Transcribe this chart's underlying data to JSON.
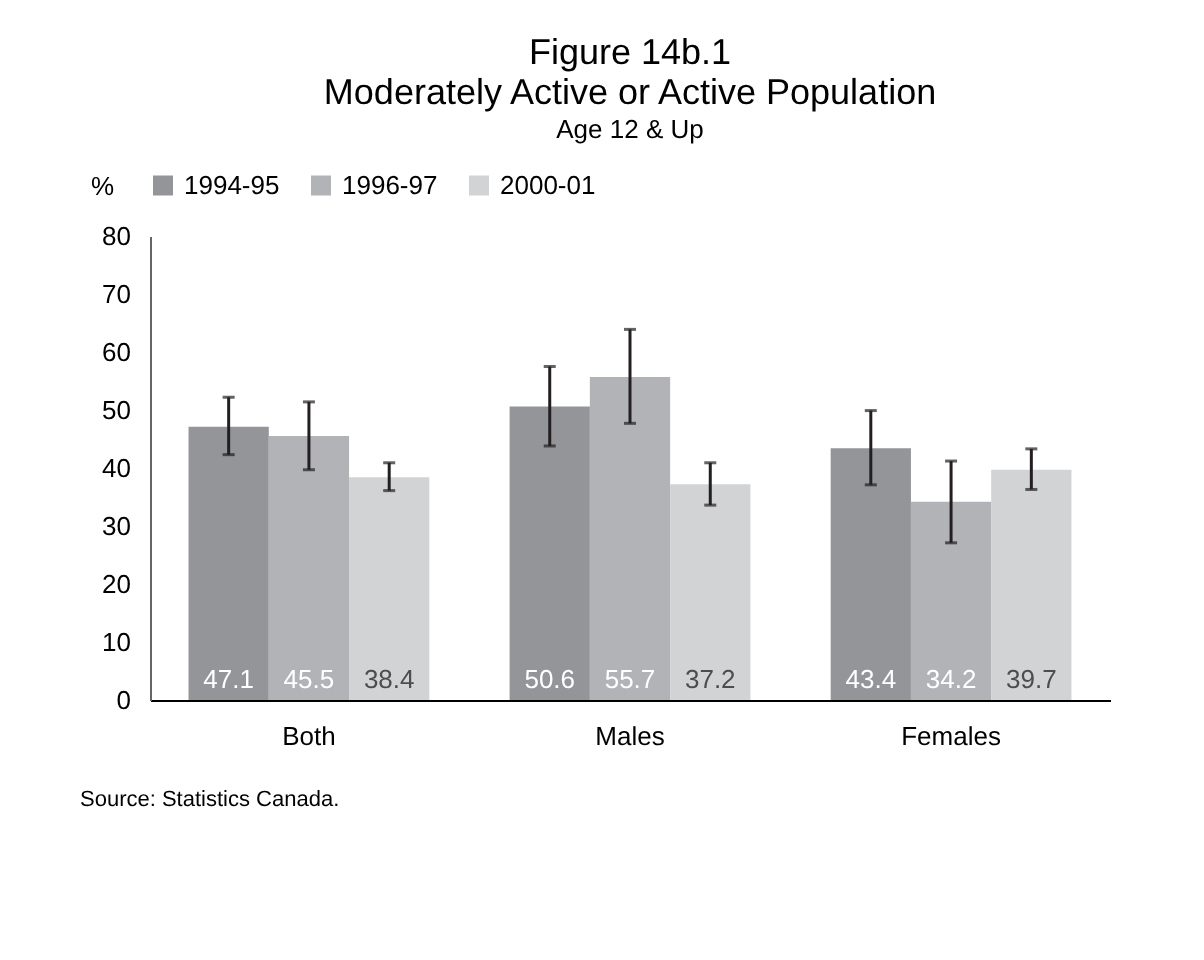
{
  "chart_data": {
    "type": "bar",
    "title": [
      "Figure 14b.1",
      "Moderately Active or Active Population"
    ],
    "subtitle": "Age 12 & Up",
    "ylabel": "%",
    "categories": [
      "Both",
      "Males",
      "Females"
    ],
    "series": [
      {
        "name": "1994-95",
        "color": "#939598",
        "values": [
          47.1,
          50.6,
          43.4
        ],
        "errors": [
          [
            42.3,
            52.2
          ],
          [
            43.8,
            57.5
          ],
          [
            37.1,
            49.9
          ]
        ]
      },
      {
        "name": "1996-97",
        "color": "#b1b3b6",
        "values": [
          45.5,
          55.7,
          34.2
        ],
        "errors": [
          [
            39.7,
            51.4
          ],
          [
            47.7,
            63.9
          ],
          [
            27.1,
            41.2
          ]
        ]
      },
      {
        "name": "2000-01",
        "color": "#d1d3d4",
        "values": [
          38.4,
          37.2,
          39.7
        ],
        "errors": [
          [
            36.1,
            40.9
          ],
          [
            33.6,
            40.9
          ],
          [
            36.3,
            43.3
          ]
        ]
      }
    ],
    "ylim": [
      0,
      80
    ],
    "yticks": [
      0,
      10,
      20,
      30,
      40,
      50,
      60,
      70,
      80
    ],
    "grid": false,
    "legend": "top",
    "data_labels": true,
    "annotations": [
      "Source: Statistics Canada."
    ]
  }
}
